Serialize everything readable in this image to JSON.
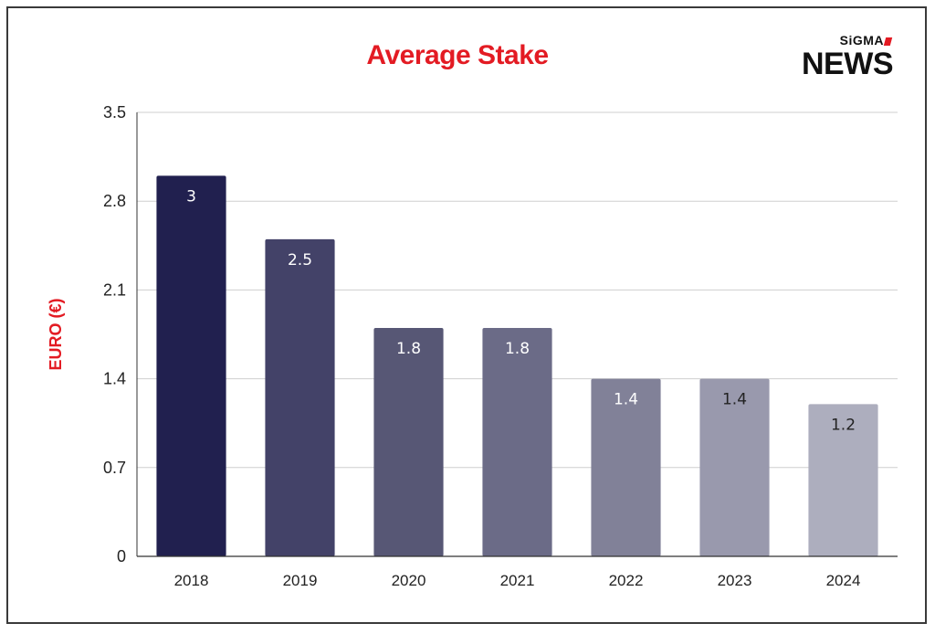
{
  "chart_data": {
    "type": "bar",
    "title": "Average Stake",
    "xlabel": "",
    "ylabel": "EURO (€)",
    "categories": [
      "2018",
      "2019",
      "2020",
      "2021",
      "2022",
      "2023",
      "2024"
    ],
    "values": [
      3,
      2.5,
      1.8,
      1.8,
      1.4,
      1.4,
      1.2
    ],
    "data_labels": [
      "3",
      "2.5",
      "1.8",
      "1.8",
      "1.4",
      "1.4",
      "1.2"
    ],
    "ylim": [
      0,
      3.5
    ],
    "yticks": [
      "0",
      "0.7",
      "1.4",
      "2.1",
      "2.8",
      "3.5"
    ],
    "grid": true,
    "legend": "none",
    "bar_colors": [
      "#21204f",
      "#434268",
      "#575775",
      "#6b6b87",
      "#818198",
      "#9999ad",
      "#adaebe"
    ],
    "label_colors": [
      "#ffffff",
      "#ffffff",
      "#ffffff",
      "#ffffff",
      "#ffffff",
      "#222222",
      "#222222"
    ],
    "title_color": "#e31b23",
    "ylabel_color": "#e31b23"
  },
  "logo": {
    "small_text": "SiGMA",
    "big_text": "NEWS"
  }
}
